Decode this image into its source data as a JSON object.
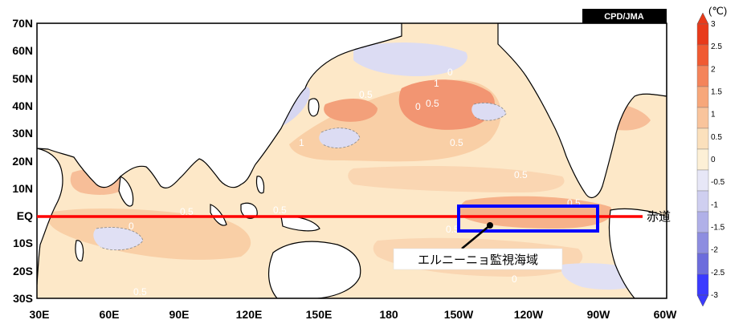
{
  "map": {
    "credit": "CPD/JMA",
    "lat_labels": [
      "70N",
      "60N",
      "50N",
      "40N",
      "30N",
      "20N",
      "10N",
      "EQ",
      "10S",
      "20S",
      "30S"
    ],
    "lon_labels": [
      "30E",
      "60E",
      "90E",
      "120E",
      "150E",
      "180",
      "150W",
      "120W",
      "90W",
      "60W"
    ],
    "equator_label": "赤道",
    "callout_label": "エルニーニョ監視海域",
    "contour_labels": [
      "0.5",
      "1",
      "0",
      "0.5",
      "1",
      "0.5",
      "0.5",
      "0",
      "0.5",
      "0.5",
      "0",
      "0.5",
      "0.5",
      "0",
      "0.5"
    ]
  },
  "colorbar": {
    "unit": "(℃)",
    "ticks": [
      "3",
      "2.5",
      "2",
      "1.5",
      "1",
      "0.5",
      "0",
      "-0.5",
      "-1",
      "-1.5",
      "-2",
      "-2.5",
      "-3"
    ],
    "colors": [
      "#e83a1a",
      "#f05a32",
      "#f4845a",
      "#f7a77a",
      "#f9c49c",
      "#fbe0bc",
      "#fdf0d6",
      "#e7e7f7",
      "#cfcff0",
      "#b0b0e8",
      "#8d8de0",
      "#6c6cdc",
      "#3a3aff"
    ]
  },
  "colors": {
    "equator_line": "#ff0000",
    "monitor_box": "#0000ff",
    "warm_fill": "#fbe3bf",
    "hot_fill": "#f29a70",
    "cool_fill": "#d9d9f2"
  }
}
